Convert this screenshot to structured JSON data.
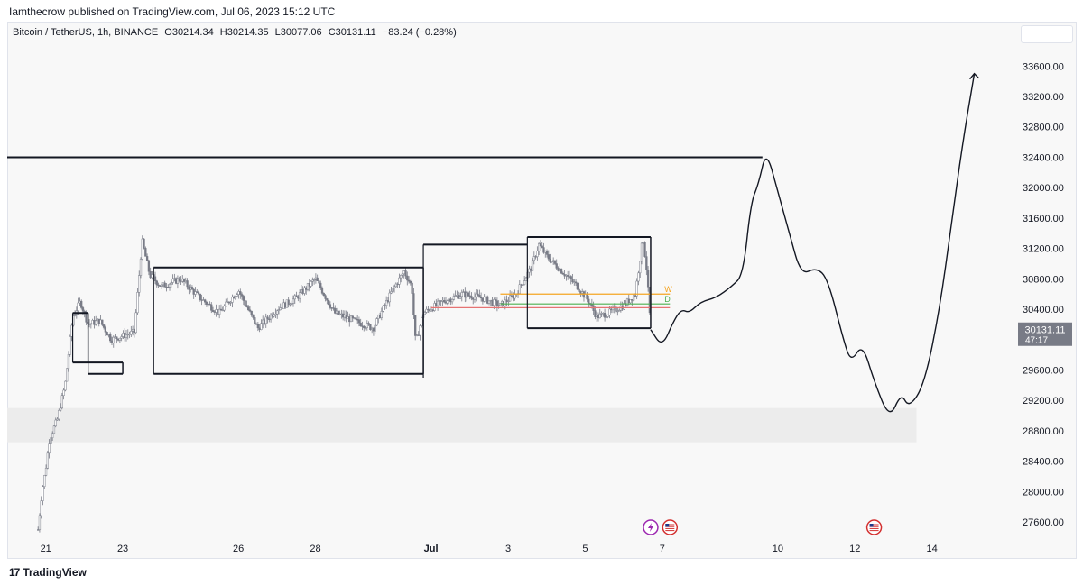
{
  "header": {
    "published": "Iamthecrow published on TradingView.com, Jul 06, 2023 15:12 UTC"
  },
  "legend": {
    "symbol": "Bitcoin / TetherUS, 1h, BINANCE",
    "open": "O30214.34",
    "high": "H30214.35",
    "low": "L30077.06",
    "close": "C30131.11",
    "change": "−83.24 (−0.28%)"
  },
  "price_tag": {
    "price": "30131.11",
    "countdown": "47:17"
  },
  "level_labels": {
    "w": "W",
    "d": "D"
  },
  "footer": {
    "brand": "TradingView",
    "logo": "tradingview-logo"
  },
  "colors": {
    "candle": "#787b86",
    "drawing": "#131722",
    "weekly_level": "#f5a623",
    "daily_level": "#e57373",
    "daily_level_green": "#4caf50",
    "zone": "#ececec",
    "price_tag_bg": "#787b86",
    "lightning_event": "#9c27b0",
    "us_event": "#d32f2f"
  },
  "chart_data": {
    "type": "candlestick",
    "symbol": "BTCUSDT",
    "timeframe": "1h",
    "ylim": [
      27400,
      33900
    ],
    "y_ticks": [
      27600,
      28000,
      28400,
      28800,
      29200,
      29600,
      30000,
      30400,
      30800,
      31200,
      31600,
      32000,
      32400,
      32800,
      33200,
      33600
    ],
    "y_tick_labels": [
      "27600.00",
      "28000.00",
      "28400.00",
      "28800.00",
      "29200.00",
      "29600.00",
      "30000.00",
      "30400.00",
      "30800.00",
      "31200.00",
      "31600.00",
      "32000.00",
      "32400.00",
      "32800.00",
      "33200.00",
      "33600.00"
    ],
    "x_ticks": [
      {
        "label": "21",
        "day": 21
      },
      {
        "label": "23",
        "day": 23
      },
      {
        "label": "26",
        "day": 26
      },
      {
        "label": "28",
        "day": 28
      },
      {
        "label": "Jul",
        "day": 31
      },
      {
        "label": "3",
        "day": 33
      },
      {
        "label": "5",
        "day": 35
      },
      {
        "label": "7",
        "day": 37
      },
      {
        "label": "10",
        "day": 40
      },
      {
        "label": "12",
        "day": 42
      },
      {
        "label": "14",
        "day": 44
      }
    ],
    "price_path": [
      [
        20.8,
        27500
      ],
      [
        20.9,
        28000
      ],
      [
        21.0,
        28300
      ],
      [
        21.1,
        28700
      ],
      [
        21.3,
        28950
      ],
      [
        21.5,
        29400
      ],
      [
        21.7,
        30300
      ],
      [
        21.9,
        30500
      ],
      [
        22.1,
        30200
      ],
      [
        22.4,
        30250
      ],
      [
        22.7,
        30000
      ],
      [
        23.0,
        30050
      ],
      [
        23.3,
        30100
      ],
      [
        23.5,
        31300
      ],
      [
        23.7,
        30850
      ],
      [
        24.0,
        30700
      ],
      [
        24.5,
        30800
      ],
      [
        25.0,
        30550
      ],
      [
        25.5,
        30350
      ],
      [
        26.0,
        30650
      ],
      [
        26.5,
        30150
      ],
      [
        27.0,
        30400
      ],
      [
        27.5,
        30550
      ],
      [
        28.0,
        30800
      ],
      [
        28.5,
        30350
      ],
      [
        29.0,
        30250
      ],
      [
        29.5,
        30150
      ],
      [
        30.0,
        30650
      ],
      [
        30.3,
        30900
      ],
      [
        30.5,
        30700
      ],
      [
        30.6,
        29950
      ],
      [
        30.8,
        30350
      ],
      [
        31.3,
        30500
      ],
      [
        31.8,
        30600
      ],
      [
        32.3,
        30550
      ],
      [
        32.8,
        30450
      ],
      [
        33.2,
        30600
      ],
      [
        33.6,
        30950
      ],
      [
        33.8,
        31250
      ],
      [
        34.0,
        31100
      ],
      [
        34.4,
        30900
      ],
      [
        34.8,
        30700
      ],
      [
        35.1,
        30500
      ],
      [
        35.3,
        30300
      ],
      [
        35.6,
        30350
      ],
      [
        36.0,
        30450
      ],
      [
        36.3,
        30600
      ],
      [
        36.5,
        31350
      ],
      [
        36.6,
        30900
      ],
      [
        36.7,
        30150
      ]
    ],
    "projection": [
      [
        36.7,
        30131
      ],
      [
        37.0,
        29900
      ],
      [
        37.3,
        30250
      ],
      [
        37.5,
        30400
      ],
      [
        37.7,
        30350
      ],
      [
        38.0,
        30500
      ],
      [
        38.4,
        30550
      ],
      [
        38.8,
        30700
      ],
      [
        39.1,
        30850
      ],
      [
        39.3,
        31800
      ],
      [
        39.5,
        32050
      ],
      [
        39.7,
        32500
      ],
      [
        40.0,
        31950
      ],
      [
        40.3,
        31400
      ],
      [
        40.6,
        30850
      ],
      [
        41.0,
        30950
      ],
      [
        41.3,
        30800
      ],
      [
        41.7,
        30000
      ],
      [
        41.9,
        29700
      ],
      [
        42.2,
        29950
      ],
      [
        42.5,
        29450
      ],
      [
        42.9,
        28950
      ],
      [
        43.2,
        29300
      ],
      [
        43.4,
        29100
      ],
      [
        43.8,
        29400
      ],
      [
        44.2,
        30400
      ],
      [
        44.5,
        31500
      ],
      [
        44.8,
        32600
      ],
      [
        45.1,
        33500
      ]
    ],
    "horizontal_levels": [
      {
        "price": 32400,
        "from": 20.0,
        "to": 39.6,
        "color": "#131722"
      },
      {
        "price": 30600,
        "from": 32.8,
        "to": 37.2,
        "color": "#f5a623",
        "label": "W"
      },
      {
        "price": 30470,
        "from": 32.8,
        "to": 37.2,
        "color": "#4caf50",
        "label": "D"
      },
      {
        "price": 30420,
        "from": 31.0,
        "to": 37.2,
        "color": "#e57373"
      }
    ],
    "range_boxes": [
      {
        "x0": 21.7,
        "x1": 22.1,
        "high": 30350,
        "low": 29700
      },
      {
        "x0": 22.1,
        "x1": 23.0,
        "high": 29700,
        "low": 29550
      },
      {
        "x0": 23.8,
        "x1": 30.8,
        "high": 30950,
        "low": 29550
      },
      {
        "x0": 30.8,
        "x1": 33.5,
        "high": 31250,
        "low": null
      },
      {
        "x0": 33.5,
        "x1": 36.7,
        "high": 31350,
        "low": 30150
      }
    ],
    "support_zone": {
      "from": 20.0,
      "to": 43.6,
      "high": 29100,
      "low": 28650
    },
    "last_price": 30131.11,
    "events": [
      {
        "day": 36.7,
        "type": "lightning"
      },
      {
        "day": 37.2,
        "type": "us"
      },
      {
        "day": 42.5,
        "type": "us"
      }
    ]
  }
}
